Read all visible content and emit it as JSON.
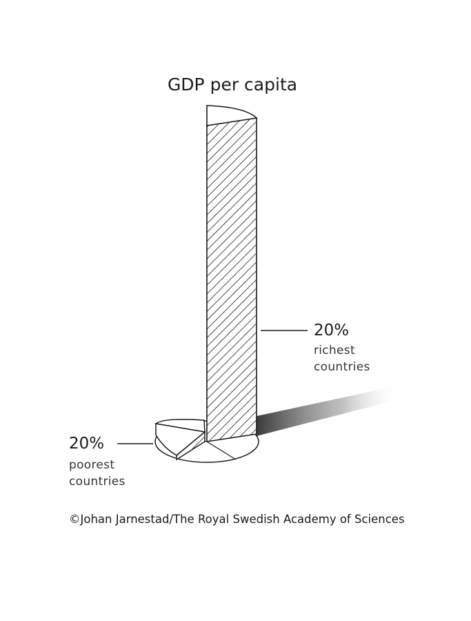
{
  "chart_data": {
    "type": "bar",
    "title": "GDP per capita",
    "categories": [
      "poorest",
      "richest"
    ],
    "series": [
      {
        "values": [
          1,
          16
        ]
      }
    ],
    "annotations": [
      {
        "percent": "20%",
        "line1": "richest",
        "line2": "countries"
      },
      {
        "percent": "20%",
        "line1": "poorest",
        "line2": "countries"
      }
    ],
    "grid": false,
    "legend": "none"
  },
  "credit": "©Johan Jarnestad/The Royal Swedish Academy of Sciences"
}
